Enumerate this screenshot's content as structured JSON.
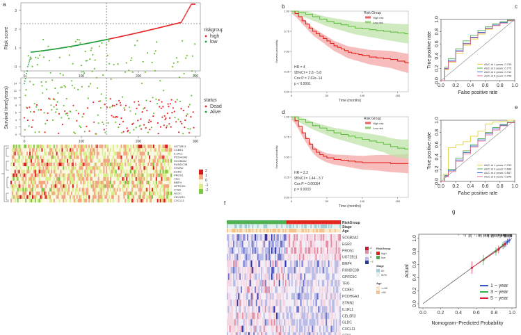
{
  "panel_letters": [
    "a",
    "b",
    "c",
    "d",
    "e",
    "f",
    "g"
  ],
  "panel_a": {
    "risk_plot": {
      "ylabel": "Risk score",
      "yticks": [
        "0",
        "1",
        "2",
        "3"
      ],
      "xticks": [
        "0",
        "100",
        "200",
        "300"
      ],
      "legend_title": "riskgroup",
      "legend": [
        "high",
        "low"
      ],
      "colors": {
        "high": "#e8272a",
        "low": "#1e9d3a"
      }
    },
    "survival_plot": {
      "ylabel": "Survival time(years)",
      "yticks": [
        "0",
        "2",
        "4",
        "6",
        "8",
        "10",
        "12",
        "14"
      ],
      "xticks": [
        "0",
        "100",
        "200",
        "300"
      ],
      "legend_title": "status",
      "legend": [
        "Dead",
        "Alive"
      ]
    },
    "heatmap": {
      "genes": [
        "UGT2B11",
        "CCBE1",
        "IL1RL1",
        "PCDHGA3",
        "SCGB2A2",
        "RUNDC3B",
        "STMN2",
        "EGR2",
        "PROS1",
        "TRO",
        "BMP4",
        "GPRC5C",
        "CT83",
        "GLDC",
        "CELSR3",
        "CXCL11"
      ],
      "scale": [
        "2",
        "1",
        "0",
        "-1",
        "-2"
      ]
    }
  },
  "chart_data": [
    {
      "panel": "b",
      "type": "line",
      "title": "",
      "xlabel": "Time (months)",
      "ylabel": "Survival probability",
      "legend_title": "Risk Group",
      "legend": [
        "High risk",
        "Low risk"
      ],
      "yticks": [
        "0.00",
        "0.25",
        "0.50",
        "0.75",
        "1.00"
      ],
      "xticks": [
        "0",
        "50",
        "100",
        "150"
      ],
      "ylim": [
        0,
        1
      ],
      "xlim": [
        0,
        165
      ],
      "stats": [
        "HR = 4",
        "95%CI = 2.8 - 5.8",
        "Cox P = 7.62e−14",
        "p < 0.0001"
      ],
      "series": [
        {
          "name": "High risk",
          "color": "#e2231a",
          "x": [
            0,
            5,
            10,
            15,
            20,
            25,
            30,
            35,
            40,
            45,
            50,
            55,
            60,
            65,
            70,
            75,
            80,
            85,
            90,
            95,
            100,
            110,
            120,
            130,
            140,
            150,
            160,
            165
          ],
          "y": [
            1,
            0.97,
            0.93,
            0.88,
            0.84,
            0.79,
            0.75,
            0.72,
            0.69,
            0.66,
            0.63,
            0.6,
            0.57,
            0.55,
            0.53,
            0.51,
            0.49,
            0.48,
            0.47,
            0.46,
            0.45,
            0.43,
            0.42,
            0.41,
            0.4,
            0.38,
            0.36,
            0.35
          ]
        },
        {
          "name": "Low risk",
          "color": "#5fbf3c",
          "x": [
            0,
            10,
            20,
            30,
            40,
            50,
            60,
            70,
            80,
            90,
            100,
            110,
            120,
            130,
            140,
            150,
            160,
            165
          ],
          "y": [
            1,
            0.98,
            0.96,
            0.93,
            0.9,
            0.87,
            0.85,
            0.83,
            0.81,
            0.79,
            0.78,
            0.77,
            0.76,
            0.75,
            0.74,
            0.73,
            0.72,
            0.72
          ]
        }
      ]
    },
    {
      "panel": "c",
      "type": "line",
      "xlabel": "False positive rate",
      "ylabel": "True positive rate",
      "xticks": [
        "0.0",
        "0.2",
        "0.4",
        "0.6",
        "0.8",
        "1.0"
      ],
      "yticks": [
        "0.0",
        "0.2",
        "0.4",
        "0.6",
        "0.8",
        "1.0"
      ],
      "xlim": [
        0,
        1
      ],
      "ylim": [
        0,
        1
      ],
      "legend": [
        "AUC at 1 years: 0.705",
        "AUC at 3 years: 0.775",
        "AUC at 4 years: 0.742",
        "AUC at 5 years: 0.726"
      ],
      "series": [
        {
          "name": "1 years",
          "color": "#e0d43a",
          "x": [
            0,
            0.05,
            0.1,
            0.2,
            0.3,
            0.4,
            0.5,
            0.6,
            0.7,
            0.8,
            0.9,
            1
          ],
          "y": [
            0,
            0.18,
            0.3,
            0.45,
            0.58,
            0.68,
            0.76,
            0.84,
            0.9,
            0.95,
            0.98,
            1
          ]
        },
        {
          "name": "3 years",
          "color": "#4caf50",
          "x": [
            0,
            0.05,
            0.1,
            0.2,
            0.3,
            0.4,
            0.5,
            0.6,
            0.7,
            0.8,
            0.9,
            1
          ],
          "y": [
            0,
            0.22,
            0.36,
            0.52,
            0.65,
            0.74,
            0.82,
            0.88,
            0.93,
            0.96,
            0.99,
            1
          ]
        },
        {
          "name": "4 years",
          "color": "#3f6fd8",
          "x": [
            0,
            0.05,
            0.1,
            0.2,
            0.3,
            0.4,
            0.5,
            0.6,
            0.7,
            0.8,
            0.9,
            1
          ],
          "y": [
            0,
            0.2,
            0.33,
            0.49,
            0.61,
            0.71,
            0.79,
            0.86,
            0.91,
            0.95,
            0.98,
            1
          ]
        },
        {
          "name": "5 years",
          "color": "#e06a8a",
          "x": [
            0,
            0.05,
            0.1,
            0.2,
            0.3,
            0.4,
            0.5,
            0.6,
            0.7,
            0.8,
            0.9,
            1
          ],
          "y": [
            0,
            0.19,
            0.31,
            0.47,
            0.6,
            0.7,
            0.78,
            0.85,
            0.9,
            0.94,
            0.98,
            1
          ]
        }
      ]
    },
    {
      "panel": "d",
      "type": "line",
      "xlabel": "Time (months)",
      "ylabel": "Survival probability",
      "legend_title": "Risk Group",
      "legend": [
        "High risk",
        "Low risk"
      ],
      "yticks": [
        "0.00",
        "0.25",
        "0.50",
        "0.75",
        "1.00"
      ],
      "xticks": [
        "0",
        "50",
        "100",
        "150"
      ],
      "ylim": [
        0,
        1
      ],
      "xlim": [
        0,
        165
      ],
      "stats": [
        "HR = 2.3",
        "95%CI = 1.44 - 3.7",
        "Cox P = 0.00054",
        "p = 0.0033"
      ],
      "series": [
        {
          "name": "High risk",
          "color": "#e2231a",
          "x": [
            0,
            5,
            10,
            15,
            20,
            25,
            30,
            35,
            40,
            45,
            50,
            60,
            70,
            80,
            90,
            100,
            120,
            140,
            160,
            165
          ],
          "y": [
            1,
            0.95,
            0.88,
            0.8,
            0.73,
            0.66,
            0.6,
            0.56,
            0.53,
            0.51,
            0.49,
            0.47,
            0.46,
            0.45,
            0.44,
            0.43,
            0.43,
            0.42,
            0.42,
            0.42
          ]
        },
        {
          "name": "Low risk",
          "color": "#5fbf3c",
          "x": [
            0,
            10,
            20,
            30,
            40,
            50,
            60,
            70,
            80,
            90,
            100,
            110,
            120,
            130,
            140,
            150,
            160,
            165
          ],
          "y": [
            1,
            0.97,
            0.93,
            0.89,
            0.86,
            0.83,
            0.8,
            0.78,
            0.76,
            0.74,
            0.72,
            0.7,
            0.68,
            0.66,
            0.63,
            0.61,
            0.6,
            0.6
          ]
        }
      ]
    },
    {
      "panel": "e",
      "type": "line",
      "xlabel": "False positive rate",
      "ylabel": "True positive rate",
      "xticks": [
        "0.0",
        "0.2",
        "0.4",
        "0.6",
        "0.8",
        "1.0"
      ],
      "yticks": [
        "0.0",
        "0.2",
        "0.4",
        "0.6",
        "0.8",
        "1.0"
      ],
      "xlim": [
        0,
        1
      ],
      "ylim": [
        0,
        1
      ],
      "legend": [
        "AUC at 1 years: 0.753",
        "AUC at 3 years: 0.688",
        "AUC at 4 years: 0.667",
        "AUC at 5 years: 0.646"
      ],
      "series": [
        {
          "name": "1 years",
          "color": "#e0d43a",
          "x": [
            0,
            0.03,
            0.1,
            0.1,
            0.2,
            0.3,
            0.4,
            0.5,
            0.6,
            0.7,
            0.8,
            0.9,
            1
          ],
          "y": [
            0,
            0.12,
            0.35,
            0.55,
            0.6,
            0.65,
            0.74,
            0.82,
            0.94,
            0.97,
            0.98,
            1,
            1
          ]
        },
        {
          "name": "3 years",
          "color": "#4caf50",
          "x": [
            0,
            0.05,
            0.1,
            0.2,
            0.3,
            0.4,
            0.5,
            0.6,
            0.7,
            0.8,
            0.9,
            1
          ],
          "y": [
            0,
            0.1,
            0.2,
            0.38,
            0.5,
            0.6,
            0.7,
            0.8,
            0.88,
            0.93,
            0.97,
            1
          ]
        },
        {
          "name": "4 years",
          "color": "#3f6fd8",
          "x": [
            0,
            0.05,
            0.1,
            0.2,
            0.3,
            0.4,
            0.5,
            0.6,
            0.7,
            0.8,
            0.9,
            1
          ],
          "y": [
            0,
            0.09,
            0.18,
            0.35,
            0.47,
            0.58,
            0.68,
            0.78,
            0.86,
            0.92,
            0.96,
            1
          ]
        },
        {
          "name": "5 years",
          "color": "#e06a8a",
          "x": [
            0,
            0.05,
            0.1,
            0.2,
            0.3,
            0.4,
            0.5,
            0.6,
            0.7,
            0.8,
            0.9,
            1
          ],
          "y": [
            0,
            0.08,
            0.16,
            0.33,
            0.45,
            0.56,
            0.66,
            0.76,
            0.84,
            0.91,
            0.96,
            1
          ]
        }
      ]
    },
    {
      "panel": "g",
      "type": "scatter",
      "xlabel": "Nomogram−Predicted Probability",
      "ylabel": "Actual",
      "xticks": [
        "0.0",
        "0.2",
        "0.4",
        "0.6",
        "0.8",
        "1.0"
      ],
      "yticks": [
        "0.0",
        "0.2",
        "0.4",
        "0.6",
        "0.8",
        "1.0"
      ],
      "xlim": [
        0,
        1
      ],
      "ylim": [
        0,
        1
      ],
      "legend": [
        "1 − year",
        "3 − year",
        "5 − year"
      ],
      "series": [
        {
          "name": "1 - year",
          "color": "#3a57c4",
          "x": [
            0.9,
            0.93,
            0.95,
            0.97
          ],
          "y": [
            0.89,
            0.92,
            0.95,
            0.97
          ]
        },
        {
          "name": "3 - year",
          "color": "#2bb24c",
          "x": [
            0.68,
            0.82,
            0.9
          ],
          "y": [
            0.67,
            0.8,
            0.9
          ]
        },
        {
          "name": "5 - year",
          "color": "#d9213a",
          "x": [
            0.55,
            0.85,
            0.92
          ],
          "y": [
            0.55,
            0.83,
            0.91
          ]
        }
      ]
    }
  ],
  "panel_f": {
    "annot_rows": [
      "RiskGroup",
      "Stage",
      "Age"
    ],
    "genes": [
      "SCGB2A2",
      "EGR2",
      "PROS1",
      "UGT2B11",
      "BMP4",
      "RUNDC3B",
      "GPRC5C",
      "TRO",
      "CCBE1",
      "PCDHGA3",
      "STMN2",
      "IL1RL1",
      "CELSR3",
      "GLDC",
      "CXCL11",
      "CT83"
    ],
    "scale": [
      "4",
      "2",
      "0",
      "−2"
    ],
    "legend_riskgroup_title": "RiskGroup",
    "legend_riskgroup": [
      "high",
      "low"
    ],
    "legend_stage_title": "Stage",
    "legend_stage": [
      "I/II",
      "III/IV"
    ],
    "legend_age_title": "Age",
    "legend_age": [
      "<=60",
      ">60"
    ]
  }
}
